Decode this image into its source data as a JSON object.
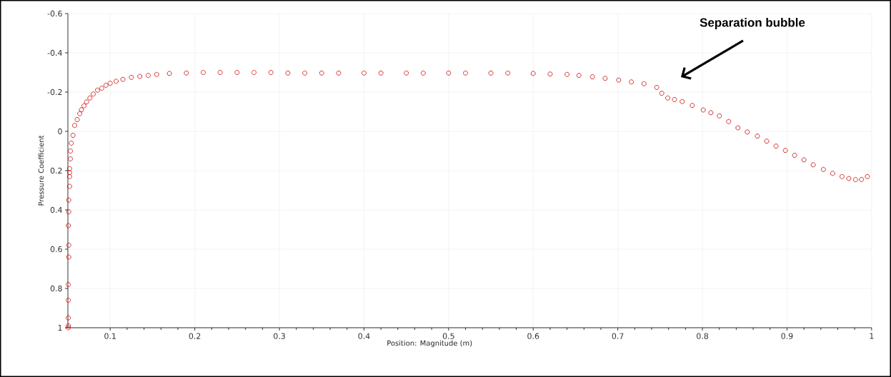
{
  "chart_data": {
    "type": "scatter",
    "xlabel": "Position: Magnitude (m)",
    "ylabel": "Pressure Coefficient",
    "annotations": [
      "Separation bubble"
    ],
    "xlim": [
      0.05,
      1.0
    ],
    "ylim": [
      1,
      -0.6
    ],
    "xticks": [
      0.1,
      0.2,
      0.3,
      0.4,
      0.5,
      0.6,
      0.7,
      0.8,
      0.9,
      1
    ],
    "yticks": [
      -0.6,
      -0.4,
      -0.2,
      0,
      0.2,
      0.4,
      0.6,
      0.8,
      1
    ],
    "grid": true,
    "marker": "circle",
    "color": "#cc0000",
    "x": [
      0.0505,
      0.0505,
      0.0505,
      0.0505,
      0.0505,
      0.051,
      0.051,
      0.0505,
      0.051,
      0.051,
      0.052,
      0.052,
      0.052,
      0.052,
      0.053,
      0.053,
      0.054,
      0.056,
      0.058,
      0.061,
      0.064,
      0.066,
      0.069,
      0.072,
      0.076,
      0.08,
      0.085,
      0.09,
      0.095,
      0.1,
      0.107,
      0.115,
      0.125,
      0.135,
      0.145,
      0.155,
      0.17,
      0.19,
      0.21,
      0.23,
      0.25,
      0.27,
      0.29,
      0.31,
      0.33,
      0.35,
      0.37,
      0.4,
      0.42,
      0.45,
      0.47,
      0.5,
      0.52,
      0.55,
      0.57,
      0.6,
      0.62,
      0.64,
      0.654,
      0.67,
      0.685,
      0.701,
      0.716,
      0.731,
      0.746,
      0.752,
      0.759,
      0.767,
      0.776,
      0.788,
      0.801,
      0.81,
      0.82,
      0.831,
      0.842,
      0.853,
      0.865,
      0.876,
      0.887,
      0.898,
      0.909,
      0.92,
      0.931,
      0.943,
      0.954,
      0.965,
      0.973,
      0.981,
      0.988,
      0.995
    ],
    "values": [
      1.0,
      0.99,
      0.95,
      0.86,
      0.78,
      0.64,
      0.58,
      0.48,
      0.41,
      0.35,
      0.28,
      0.23,
      0.21,
      0.19,
      0.14,
      0.1,
      0.06,
      0.02,
      -0.03,
      -0.06,
      -0.09,
      -0.11,
      -0.13,
      -0.15,
      -0.17,
      -0.19,
      -0.21,
      -0.22,
      -0.235,
      -0.245,
      -0.255,
      -0.265,
      -0.275,
      -0.28,
      -0.285,
      -0.29,
      -0.295,
      -0.297,
      -0.3,
      -0.3,
      -0.3,
      -0.3,
      -0.3,
      -0.297,
      -0.297,
      -0.297,
      -0.297,
      -0.297,
      -0.297,
      -0.297,
      -0.297,
      -0.297,
      -0.297,
      -0.297,
      -0.297,
      -0.295,
      -0.292,
      -0.29,
      -0.285,
      -0.278,
      -0.27,
      -0.261,
      -0.252,
      -0.243,
      -0.224,
      -0.194,
      -0.17,
      -0.162,
      -0.152,
      -0.132,
      -0.109,
      -0.095,
      -0.079,
      -0.05,
      -0.018,
      0.003,
      0.024,
      0.05,
      0.075,
      0.097,
      0.122,
      0.145,
      0.17,
      0.194,
      0.214,
      0.23,
      0.24,
      0.246,
      0.245,
      0.23
    ]
  }
}
